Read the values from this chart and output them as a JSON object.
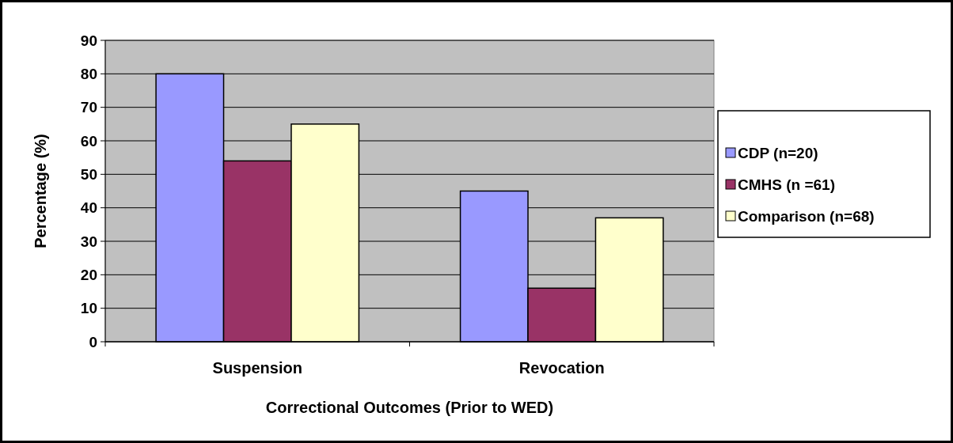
{
  "chart_data": {
    "type": "bar",
    "xlabel": "Correctional Outcomes (Prior to WED)",
    "ylabel": "Percentage (%)",
    "categories": [
      "Suspension",
      "Revocation"
    ],
    "series": [
      {
        "name": "CDP (n=20)",
        "color": "#9999ff",
        "values": [
          80,
          45
        ]
      },
      {
        "name": "CMHS (n =61)",
        "color": "#993366",
        "values": [
          54,
          16
        ]
      },
      {
        "name": "Comparison (n=68)",
        "color": "#ffffcc",
        "values": [
          65,
          37
        ]
      }
    ],
    "ylim": [
      0,
      90
    ],
    "yticks": [
      0,
      10,
      20,
      30,
      40,
      50,
      60,
      70,
      80,
      90
    ],
    "grid": "y",
    "legend": "right"
  }
}
